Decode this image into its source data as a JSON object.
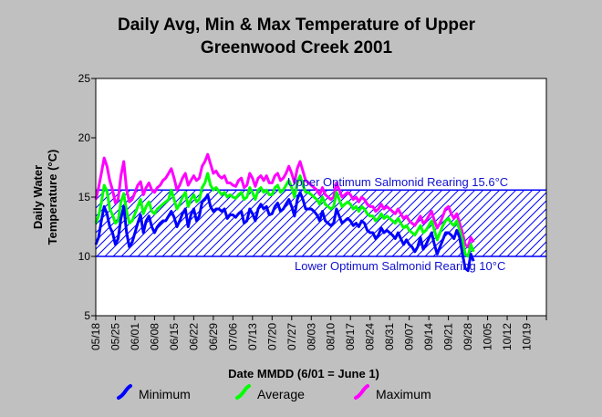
{
  "chart_data": {
    "type": "line",
    "title_line1": "Daily Avg, Min & Max Temperature of Upper",
    "title_line2": "Greenwood Creek 2001",
    "xlabel": "Date MMDD (6/01 = June 1)",
    "ylabel_line1": "Daily Water",
    "ylabel_line2": "Temperature (°C)",
    "ylim": [
      5,
      25
    ],
    "yticks": [
      "5",
      "10",
      "15",
      "20",
      "25"
    ],
    "x_start": "05/18",
    "x_end": "10/24",
    "x_tick_labels": [
      "05/18",
      "05/25",
      "06/01",
      "06/08",
      "06/15",
      "06/22",
      "06/29",
      "07/06",
      "07/13",
      "07/20",
      "07/27",
      "08/03",
      "08/10",
      "08/17",
      "08/24",
      "08/31",
      "09/07",
      "09/14",
      "09/21",
      "09/28",
      "10/05",
      "10/12",
      "10/19"
    ],
    "band": {
      "lower": 10,
      "upper": 15.6,
      "upper_label": "Upper Optimum Salmonid Rearing 15.6°C",
      "lower_label": "Lower Optimum Salmonid Rearing 10°C",
      "color": "#0000ff"
    },
    "series": [
      {
        "name": "Minimum",
        "color": "#0000ff",
        "values": [
          11.0,
          11.6,
          13.0,
          14.2,
          13.6,
          12.5,
          12.0,
          11.0,
          11.5,
          13.2,
          14.2,
          12.0,
          10.8,
          11.2,
          12.0,
          12.8,
          13.5,
          12.0,
          13.0,
          13.4,
          12.5,
          12.0,
          12.5,
          12.8,
          13.0,
          13.0,
          13.4,
          13.8,
          13.3,
          12.5,
          13.0,
          13.6,
          14.0,
          12.5,
          13.5,
          14.0,
          13.0,
          13.4,
          14.6,
          14.8,
          15.2,
          14.2,
          13.8,
          14.0,
          14.0,
          13.8,
          14.0,
          13.2,
          13.5,
          13.5,
          13.3,
          13.6,
          13.8,
          12.8,
          13.0,
          14.0,
          13.6,
          13.0,
          14.0,
          14.4,
          14.0,
          14.2,
          13.5,
          13.6,
          14.2,
          14.5,
          13.8,
          14.0,
          14.4,
          14.8,
          14.2,
          13.4,
          14.8,
          15.4,
          14.8,
          14.0,
          14.0,
          14.0,
          13.8,
          13.5,
          13.0,
          13.8,
          13.0,
          12.8,
          12.6,
          12.8,
          14.0,
          13.4,
          12.8,
          13.0,
          13.2,
          13.0,
          12.6,
          12.8,
          12.5,
          13.0,
          12.8,
          12.2,
          12.0,
          12.0,
          11.5,
          11.8,
          12.4,
          12.0,
          12.2,
          12.0,
          11.8,
          11.5,
          12.0,
          11.5,
          11.0,
          11.4,
          11.0,
          10.8,
          10.4,
          10.8,
          11.6,
          10.6,
          11.0,
          11.5,
          12.0,
          11.0,
          10.2,
          10.8,
          11.4,
          12.0,
          12.0,
          11.8,
          11.5,
          12.2,
          11.6,
          10.2,
          9.0,
          8.8,
          10.2,
          9.6
        ]
      },
      {
        "name": "Average",
        "color": "#00ff00",
        "values": [
          12.8,
          13.4,
          14.5,
          16.0,
          15.5,
          14.0,
          13.5,
          12.8,
          13.0,
          14.6,
          15.3,
          13.8,
          12.8,
          13.0,
          13.6,
          14.2,
          14.8,
          13.6,
          14.2,
          14.6,
          13.8,
          13.6,
          14.0,
          14.2,
          14.4,
          14.6,
          14.8,
          15.6,
          14.8,
          14.0,
          14.4,
          15.0,
          15.4,
          14.2,
          14.8,
          15.2,
          14.6,
          14.8,
          15.8,
          16.2,
          17.0,
          16.0,
          15.6,
          15.8,
          15.5,
          15.2,
          15.4,
          15.0,
          15.2,
          15.0,
          14.9,
          15.2,
          15.4,
          14.8,
          15.0,
          15.8,
          15.4,
          14.8,
          15.6,
          15.8,
          15.4,
          15.6,
          15.2,
          15.2,
          15.8,
          16.0,
          15.4,
          15.6,
          16.0,
          16.4,
          15.8,
          15.0,
          16.2,
          16.8,
          16.0,
          15.4,
          15.4,
          15.2,
          15.0,
          14.8,
          14.4,
          15.0,
          14.4,
          14.2,
          14.0,
          14.2,
          15.4,
          14.8,
          14.2,
          14.4,
          14.6,
          14.4,
          14.0,
          14.2,
          13.8,
          14.2,
          14.0,
          13.6,
          13.4,
          13.4,
          13.0,
          13.2,
          13.6,
          13.2,
          13.4,
          13.2,
          13.0,
          12.8,
          13.2,
          12.8,
          12.4,
          12.6,
          12.2,
          12.0,
          11.8,
          12.2,
          12.6,
          12.0,
          12.2,
          12.6,
          13.0,
          12.2,
          11.4,
          12.0,
          12.6,
          13.0,
          13.2,
          12.8,
          12.6,
          13.0,
          12.2,
          11.4,
          10.2,
          10.0,
          11.0,
          10.4
        ]
      },
      {
        "name": "Maximum",
        "color": "#ff00ff",
        "values": [
          14.8,
          15.8,
          17.0,
          18.3,
          17.6,
          16.4,
          15.6,
          14.5,
          14.8,
          16.8,
          18.0,
          15.6,
          14.6,
          14.8,
          15.4,
          16.0,
          16.3,
          15.2,
          15.8,
          16.2,
          15.6,
          15.4,
          15.8,
          16.0,
          16.4,
          16.6,
          17.0,
          17.4,
          16.6,
          15.6,
          16.0,
          16.6,
          17.0,
          16.0,
          16.4,
          16.8,
          16.4,
          16.6,
          17.6,
          18.0,
          18.6,
          17.8,
          17.0,
          17.2,
          16.8,
          16.6,
          16.8,
          16.2,
          16.2,
          16.0,
          15.9,
          16.4,
          16.6,
          15.8,
          16.0,
          17.0,
          16.6,
          15.9,
          16.6,
          16.8,
          16.4,
          16.8,
          16.2,
          16.2,
          16.8,
          17.0,
          16.4,
          16.6,
          17.0,
          17.6,
          17.0,
          16.2,
          17.4,
          18.0,
          17.2,
          16.4,
          16.2,
          16.0,
          15.8,
          15.6,
          15.2,
          15.8,
          15.2,
          15.0,
          14.8,
          15.0,
          16.2,
          15.6,
          15.0,
          15.2,
          15.4,
          15.2,
          14.8,
          15.0,
          14.6,
          15.0,
          14.8,
          14.4,
          14.2,
          14.2,
          13.8,
          14.0,
          14.4,
          14.0,
          14.2,
          14.0,
          13.8,
          13.6,
          14.0,
          13.6,
          13.2,
          13.4,
          13.0,
          12.8,
          12.6,
          13.0,
          13.4,
          12.8,
          13.0,
          13.4,
          13.8,
          13.0,
          12.4,
          12.8,
          13.4,
          14.0,
          14.2,
          13.6,
          13.2,
          13.6,
          12.8,
          12.0,
          11.0,
          10.8,
          11.6,
          11.2
        ]
      }
    ],
    "legend_position": "bottom"
  }
}
